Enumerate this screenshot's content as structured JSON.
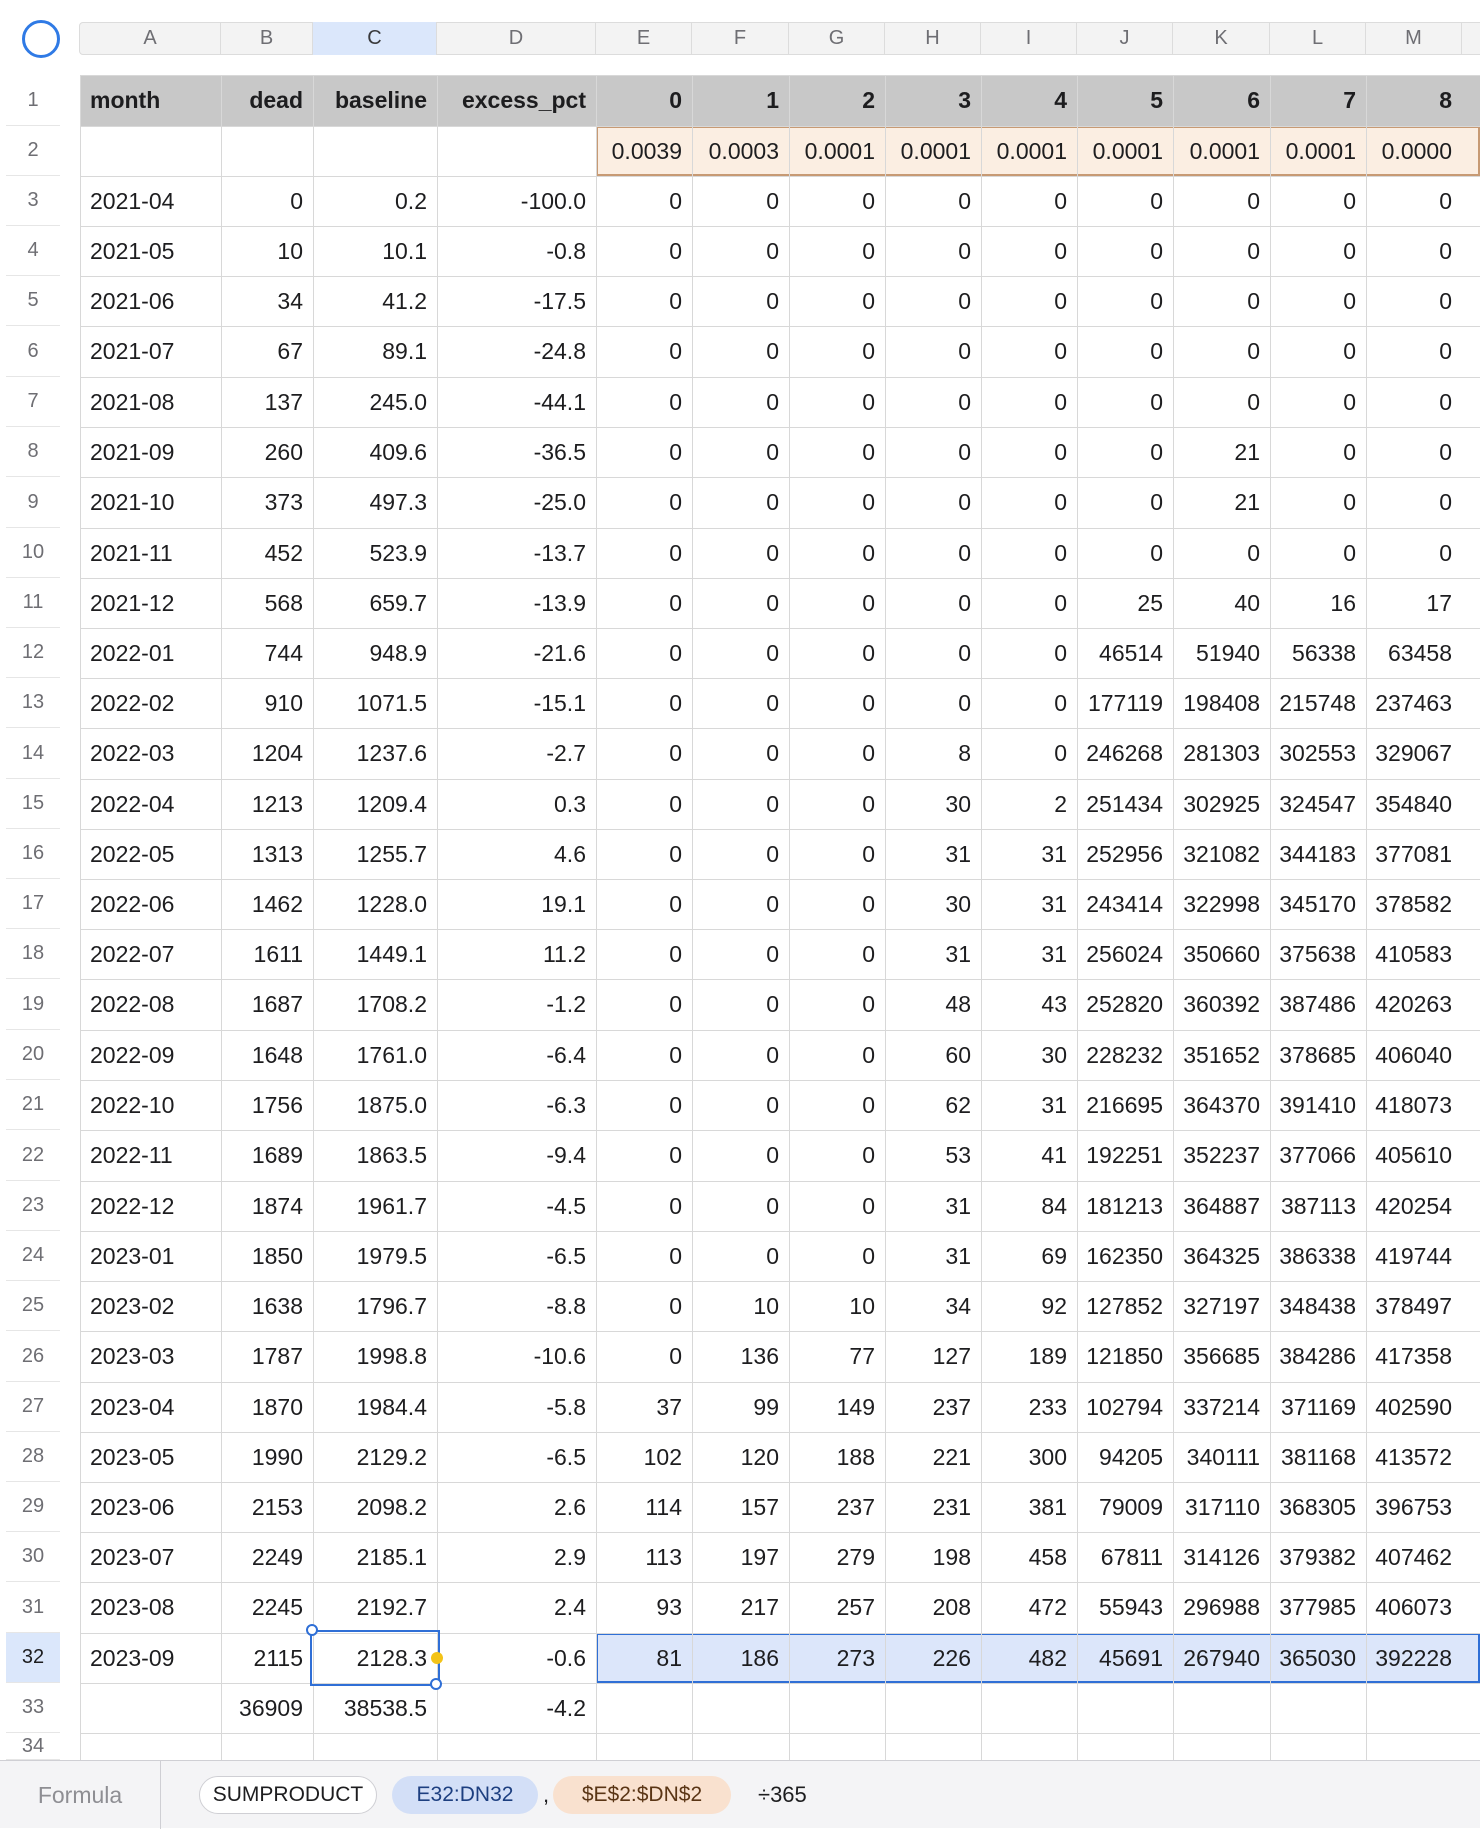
{
  "columns": [
    "A",
    "B",
    "C",
    "D",
    "E",
    "F",
    "G",
    "H",
    "I",
    "J",
    "K",
    "L",
    "M"
  ],
  "table": {
    "headers": [
      "month",
      "dead",
      "baseline",
      "excess_pct",
      "0",
      "1",
      "2",
      "3",
      "4",
      "5",
      "6",
      "7",
      "8"
    ],
    "weights": [
      "",
      "",
      "",
      "",
      "0.0039",
      "0.0003",
      "0.0001",
      "0.0001",
      "0.0001",
      "0.0001",
      "0.0001",
      "0.0001",
      "0.0000"
    ],
    "rows": [
      [
        "2021-04",
        "0",
        "0.2",
        "-100.0",
        "0",
        "0",
        "0",
        "0",
        "0",
        "0",
        "0",
        "0",
        "0"
      ],
      [
        "2021-05",
        "10",
        "10.1",
        "-0.8",
        "0",
        "0",
        "0",
        "0",
        "0",
        "0",
        "0",
        "0",
        "0"
      ],
      [
        "2021-06",
        "34",
        "41.2",
        "-17.5",
        "0",
        "0",
        "0",
        "0",
        "0",
        "0",
        "0",
        "0",
        "0"
      ],
      [
        "2021-07",
        "67",
        "89.1",
        "-24.8",
        "0",
        "0",
        "0",
        "0",
        "0",
        "0",
        "0",
        "0",
        "0"
      ],
      [
        "2021-08",
        "137",
        "245.0",
        "-44.1",
        "0",
        "0",
        "0",
        "0",
        "0",
        "0",
        "0",
        "0",
        "0"
      ],
      [
        "2021-09",
        "260",
        "409.6",
        "-36.5",
        "0",
        "0",
        "0",
        "0",
        "0",
        "0",
        "21",
        "0",
        "0"
      ],
      [
        "2021-10",
        "373",
        "497.3",
        "-25.0",
        "0",
        "0",
        "0",
        "0",
        "0",
        "0",
        "21",
        "0",
        "0"
      ],
      [
        "2021-11",
        "452",
        "523.9",
        "-13.7",
        "0",
        "0",
        "0",
        "0",
        "0",
        "0",
        "0",
        "0",
        "0"
      ],
      [
        "2021-12",
        "568",
        "659.7",
        "-13.9",
        "0",
        "0",
        "0",
        "0",
        "0",
        "25",
        "40",
        "16",
        "17"
      ],
      [
        "2022-01",
        "744",
        "948.9",
        "-21.6",
        "0",
        "0",
        "0",
        "0",
        "0",
        "46514",
        "51940",
        "56338",
        "63458"
      ],
      [
        "2022-02",
        "910",
        "1071.5",
        "-15.1",
        "0",
        "0",
        "0",
        "0",
        "0",
        "177119",
        "198408",
        "215748",
        "237463"
      ],
      [
        "2022-03",
        "1204",
        "1237.6",
        "-2.7",
        "0",
        "0",
        "0",
        "8",
        "0",
        "246268",
        "281303",
        "302553",
        "329067"
      ],
      [
        "2022-04",
        "1213",
        "1209.4",
        "0.3",
        "0",
        "0",
        "0",
        "30",
        "2",
        "251434",
        "302925",
        "324547",
        "354840"
      ],
      [
        "2022-05",
        "1313",
        "1255.7",
        "4.6",
        "0",
        "0",
        "0",
        "31",
        "31",
        "252956",
        "321082",
        "344183",
        "377081"
      ],
      [
        "2022-06",
        "1462",
        "1228.0",
        "19.1",
        "0",
        "0",
        "0",
        "30",
        "31",
        "243414",
        "322998",
        "345170",
        "378582"
      ],
      [
        "2022-07",
        "1611",
        "1449.1",
        "11.2",
        "0",
        "0",
        "0",
        "31",
        "31",
        "256024",
        "350660",
        "375638",
        "410583"
      ],
      [
        "2022-08",
        "1687",
        "1708.2",
        "-1.2",
        "0",
        "0",
        "0",
        "48",
        "43",
        "252820",
        "360392",
        "387486",
        "420263"
      ],
      [
        "2022-09",
        "1648",
        "1761.0",
        "-6.4",
        "0",
        "0",
        "0",
        "60",
        "30",
        "228232",
        "351652",
        "378685",
        "406040"
      ],
      [
        "2022-10",
        "1756",
        "1875.0",
        "-6.3",
        "0",
        "0",
        "0",
        "62",
        "31",
        "216695",
        "364370",
        "391410",
        "418073"
      ],
      [
        "2022-11",
        "1689",
        "1863.5",
        "-9.4",
        "0",
        "0",
        "0",
        "53",
        "41",
        "192251",
        "352237",
        "377066",
        "405610"
      ],
      [
        "2022-12",
        "1874",
        "1961.7",
        "-4.5",
        "0",
        "0",
        "0",
        "31",
        "84",
        "181213",
        "364887",
        "387113",
        "420254"
      ],
      [
        "2023-01",
        "1850",
        "1979.5",
        "-6.5",
        "0",
        "0",
        "0",
        "31",
        "69",
        "162350",
        "364325",
        "386338",
        "419744"
      ],
      [
        "2023-02",
        "1638",
        "1796.7",
        "-8.8",
        "0",
        "10",
        "10",
        "34",
        "92",
        "127852",
        "327197",
        "348438",
        "378497"
      ],
      [
        "2023-03",
        "1787",
        "1998.8",
        "-10.6",
        "0",
        "136",
        "77",
        "127",
        "189",
        "121850",
        "356685",
        "384286",
        "417358"
      ],
      [
        "2023-04",
        "1870",
        "1984.4",
        "-5.8",
        "37",
        "99",
        "149",
        "237",
        "233",
        "102794",
        "337214",
        "371169",
        "402590"
      ],
      [
        "2023-05",
        "1990",
        "2129.2",
        "-6.5",
        "102",
        "120",
        "188",
        "221",
        "300",
        "94205",
        "340111",
        "381168",
        "413572"
      ],
      [
        "2023-06",
        "2153",
        "2098.2",
        "2.6",
        "114",
        "157",
        "237",
        "231",
        "381",
        "79009",
        "317110",
        "368305",
        "396753"
      ],
      [
        "2023-07",
        "2249",
        "2185.1",
        "2.9",
        "113",
        "197",
        "279",
        "198",
        "458",
        "67811",
        "314126",
        "379382",
        "407462"
      ],
      [
        "2023-08",
        "2245",
        "2192.7",
        "2.4",
        "93",
        "217",
        "257",
        "208",
        "472",
        "55943",
        "296988",
        "377985",
        "406073"
      ],
      [
        "2023-09",
        "2115",
        "2128.3",
        "-0.6",
        "81",
        "186",
        "273",
        "226",
        "482",
        "45691",
        "267940",
        "365030",
        "392228"
      ]
    ],
    "totals": [
      "",
      "36909",
      "38538.5",
      "-4.2",
      "",
      "",
      "",
      "",
      "",
      "",
      "",
      "",
      ""
    ]
  },
  "formula_bar": {
    "label": "Formula",
    "function_name": "SUMPRODUCT",
    "range1": "E32:DN32",
    "separator": ",",
    "range2": "$E$2:$DN$2",
    "tail": "÷365"
  },
  "colors": {
    "accent": "#2f6fd6",
    "selection_fill": "#dce6fa",
    "weights_fill": "#fbeee2",
    "weights_border": "#c79a74",
    "header_fill": "#c8c8c8",
    "range1_pill": "#d3dff7",
    "range2_pill": "#f9e1cf",
    "handle_yellow": "#f3c318"
  }
}
